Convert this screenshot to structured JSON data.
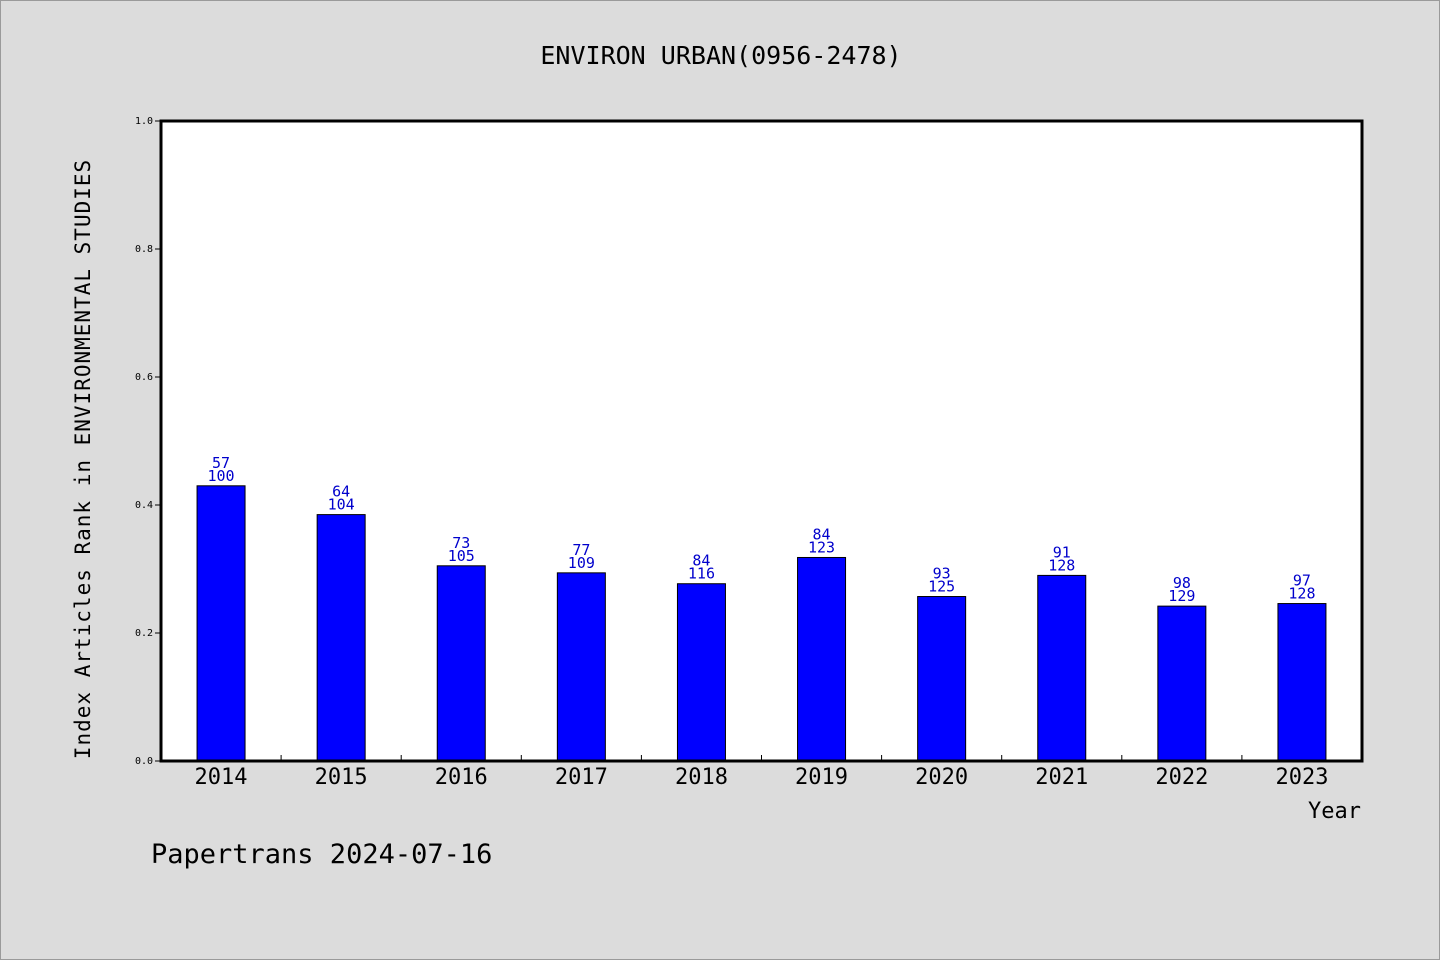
{
  "chart_data": {
    "type": "bar",
    "title": "ENVIRON URBAN(0956-2478)",
    "xlabel": "Year",
    "ylabel": "Index Articles Rank in ENVIRONMENTAL STUDIES",
    "categories": [
      "2014",
      "2015",
      "2016",
      "2017",
      "2018",
      "2019",
      "2020",
      "2021",
      "2022",
      "2023"
    ],
    "values": [
      0.43,
      0.385,
      0.305,
      0.294,
      0.277,
      0.318,
      0.257,
      0.29,
      0.242,
      0.246
    ],
    "rank_labels": [
      "57",
      "64",
      "73",
      "77",
      "84",
      "84",
      "93",
      "91",
      "98",
      "97"
    ],
    "total_labels": [
      "100",
      "104",
      "105",
      "109",
      "116",
      "123",
      "125",
      "128",
      "129",
      "128"
    ],
    "ylim": [
      0,
      1.0
    ],
    "yticks": [
      "0.0",
      "0.2",
      "0.4",
      "0.6",
      "0.8",
      "1.0"
    ],
    "bar_color": "#0000ff",
    "label_color": "#0000cc",
    "grid": false,
    "legend": "none"
  },
  "footer": "Papertrans 2024-07-16"
}
